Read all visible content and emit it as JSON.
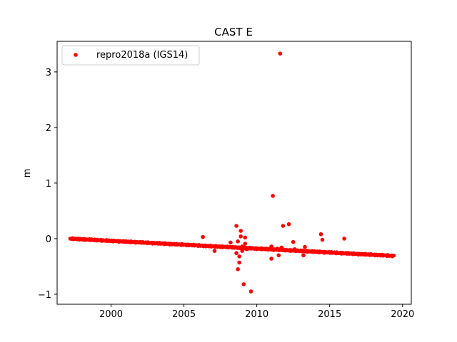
{
  "chart_data": {
    "type": "scatter",
    "title": "CAST E",
    "xlabel": "",
    "ylabel": "m",
    "xlim": [
      1996.3,
      2020.6
    ],
    "ylim": [
      -1.18,
      3.55
    ],
    "xticks": [
      2000,
      2005,
      2010,
      2015,
      2020
    ],
    "xtick_labels": [
      "2000",
      "2005",
      "2010",
      "2015",
      "2020"
    ],
    "yticks": [
      -1,
      0,
      1,
      2,
      3
    ],
    "ytick_labels": [
      "−1",
      "0",
      "1",
      "2",
      "3"
    ],
    "grid": false,
    "legend_position": "top-left",
    "series": [
      {
        "name": "repro2018a (IGS14)",
        "color": "#ff0000",
        "marker": "circle",
        "trend": {
          "x_start": 1997.2,
          "y_start": 0.0,
          "x_end": 2019.4,
          "y_end": -0.31
        },
        "outliers": [
          [
            2006.3,
            0.03
          ],
          [
            2006.4,
            -0.13
          ],
          [
            2007.1,
            -0.22
          ],
          [
            2008.2,
            -0.07
          ],
          [
            2008.6,
            0.23
          ],
          [
            2008.6,
            -0.26
          ],
          [
            2008.7,
            -0.55
          ],
          [
            2008.7,
            -0.05
          ],
          [
            2008.8,
            -0.32
          ],
          [
            2008.8,
            -0.43
          ],
          [
            2008.9,
            0.14
          ],
          [
            2008.9,
            0.04
          ],
          [
            2009.0,
            -0.14
          ],
          [
            2009.0,
            -0.22
          ],
          [
            2009.1,
            -0.82
          ],
          [
            2009.1,
            -0.17
          ],
          [
            2009.2,
            0.02
          ],
          [
            2009.2,
            -0.09
          ],
          [
            2009.3,
            -0.19
          ],
          [
            2009.6,
            -0.95
          ],
          [
            2011.0,
            -0.36
          ],
          [
            2011.0,
            -0.14
          ],
          [
            2011.1,
            0.77
          ],
          [
            2011.4,
            -0.18
          ],
          [
            2011.5,
            -0.3
          ],
          [
            2011.6,
            3.33
          ],
          [
            2011.7,
            -0.16
          ],
          [
            2011.8,
            0.23
          ],
          [
            2012.2,
            0.26
          ],
          [
            2012.5,
            -0.06
          ],
          [
            2012.6,
            -0.19
          ],
          [
            2013.2,
            -0.3
          ],
          [
            2013.3,
            -0.15
          ],
          [
            2014.4,
            0.08
          ],
          [
            2014.5,
            -0.02
          ],
          [
            2016.0,
            0.0
          ]
        ]
      }
    ]
  }
}
